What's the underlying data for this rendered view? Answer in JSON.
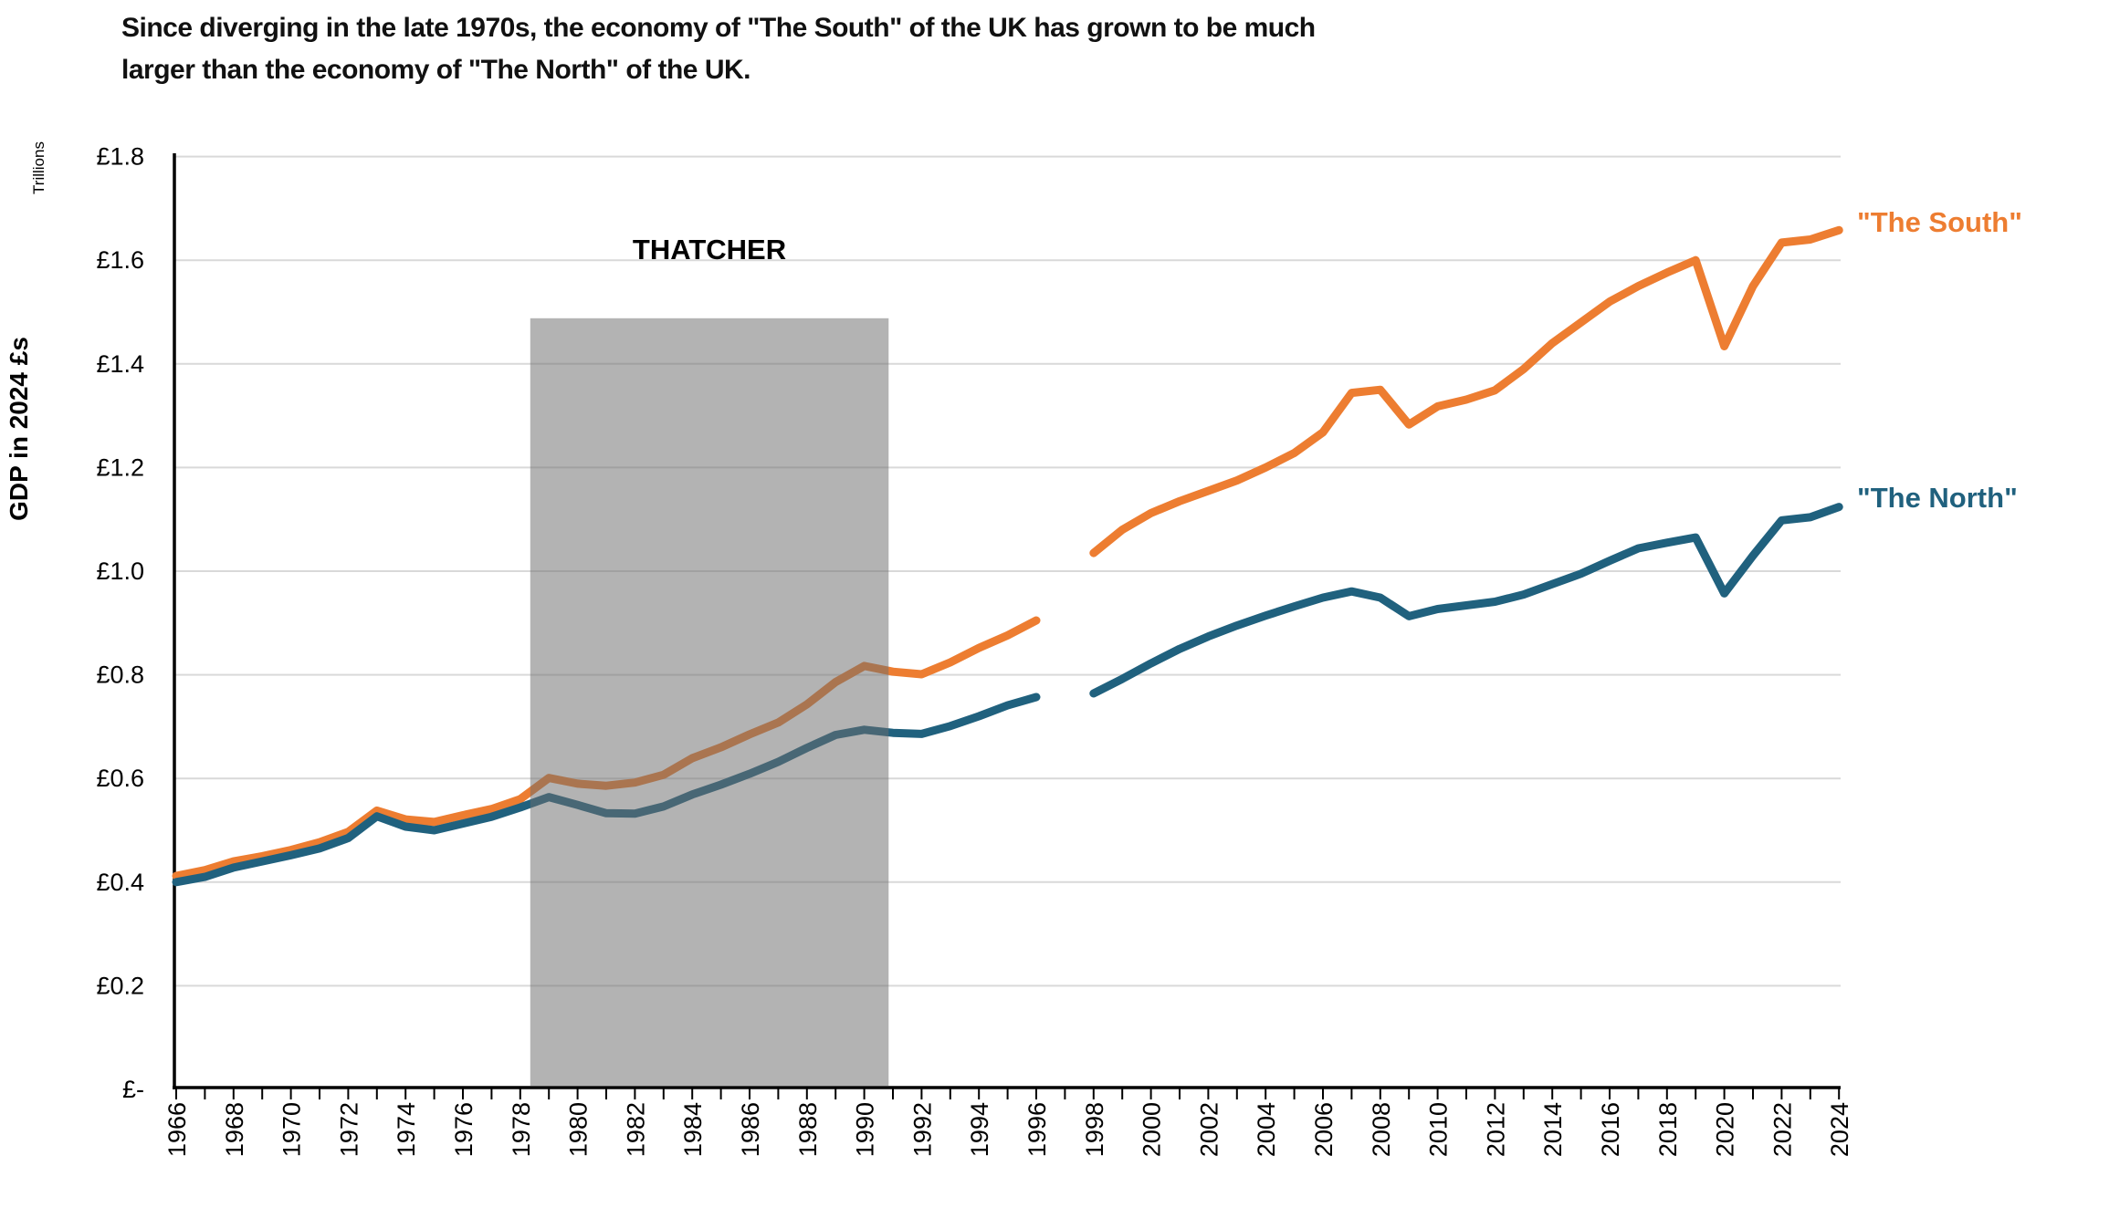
{
  "title": {
    "line1": "Since diverging in the late 1970s, the economy of \"The South\" of the UK has grown to be much",
    "line2": "larger than the economy of \"The North\" of the UK."
  },
  "colors": {
    "south": "#ED7D31",
    "north": "#20617E",
    "gridline": "#D9D9D9",
    "axis": "#000000",
    "shade": "#B3B3B3",
    "title_text": "#111111"
  },
  "chart_data": {
    "type": "line",
    "title": "Since diverging in the late 1970s, the economy of \"The South\" of the UK has grown to be much larger than the economy of \"The North\" of the UK.",
    "ylabel": "GDP in 2024 £s",
    "y_unit_label": "Trillions",
    "xlabel": "",
    "ylim": [
      0,
      1.8
    ],
    "xlim": [
      1966,
      2024
    ],
    "grid": "horizontal",
    "legend_position": "line-end-labels",
    "missing_years": [
      1997
    ],
    "x_label_step": 2,
    "y_ticks": [
      {
        "value": 1.8,
        "label": "£1.8"
      },
      {
        "value": 1.6,
        "label": "£1.6"
      },
      {
        "value": 1.4,
        "label": "£1.4"
      },
      {
        "value": 1.2,
        "label": "£1.2"
      },
      {
        "value": 1.0,
        "label": "£1.0"
      },
      {
        "value": 0.8,
        "label": "£0.8"
      },
      {
        "value": 0.6,
        "label": "£0.6"
      },
      {
        "value": 0.4,
        "label": "£0.4"
      },
      {
        "value": 0.2,
        "label": "£0.2"
      },
      {
        "value": 0.0,
        "label": "£-"
      }
    ],
    "x": [
      1966,
      1967,
      1968,
      1969,
      1970,
      1971,
      1972,
      1973,
      1974,
      1975,
      1976,
      1977,
      1978,
      1979,
      1980,
      1981,
      1982,
      1983,
      1984,
      1985,
      1986,
      1987,
      1988,
      1989,
      1990,
      1991,
      1992,
      1993,
      1994,
      1995,
      1996,
      1997,
      1998,
      1999,
      2000,
      2001,
      2002,
      2003,
      2004,
      2005,
      2006,
      2007,
      2008,
      2009,
      2010,
      2011,
      2012,
      2013,
      2014,
      2015,
      2016,
      2017,
      2018,
      2019,
      2020,
      2021,
      2022,
      2023,
      2024
    ],
    "series": [
      {
        "id": "south",
        "name": "\"The South\"",
        "color": "#ED7D31",
        "values": [
          0.412,
          0.423,
          0.44,
          0.45,
          0.462,
          0.477,
          0.497,
          0.538,
          0.521,
          0.516,
          0.529,
          0.541,
          0.56,
          0.601,
          0.59,
          0.586,
          0.592,
          0.607,
          0.639,
          0.66,
          0.685,
          0.708,
          0.743,
          0.786,
          0.817,
          0.806,
          0.801,
          0.824,
          0.852,
          0.876,
          0.905,
          null,
          1.035,
          1.08,
          1.112,
          1.135,
          1.155,
          1.175,
          1.2,
          1.228,
          1.268,
          1.344,
          1.35,
          1.283,
          1.318,
          1.331,
          1.349,
          1.39,
          1.44,
          1.48,
          1.52,
          1.55,
          1.576,
          1.6,
          1.434,
          1.55,
          1.634,
          1.64,
          1.658
        ]
      },
      {
        "id": "north",
        "name": "\"The North\"",
        "color": "#20617E",
        "values": [
          0.4,
          0.41,
          0.428,
          0.44,
          0.452,
          0.465,
          0.485,
          0.527,
          0.507,
          0.5,
          0.513,
          0.526,
          0.544,
          0.564,
          0.549,
          0.533,
          0.532,
          0.546,
          0.569,
          0.588,
          0.609,
          0.632,
          0.659,
          0.684,
          0.694,
          0.688,
          0.686,
          0.701,
          0.72,
          0.741,
          0.757,
          null,
          0.764,
          0.792,
          0.822,
          0.85,
          0.874,
          0.895,
          0.914,
          0.932,
          0.949,
          0.961,
          0.949,
          0.913,
          0.927,
          0.934,
          0.941,
          0.955,
          0.975,
          0.995,
          1.02,
          1.044,
          1.055,
          1.065,
          0.957,
          1.03,
          1.098,
          1.104,
          1.124
        ]
      }
    ],
    "annotations": [
      {
        "type": "shaded-region",
        "label": "THATCHER",
        "x_start": 1978.35,
        "x_end": 1990.85,
        "y_top": 1.488,
        "color": "#B3B3B3"
      }
    ]
  }
}
